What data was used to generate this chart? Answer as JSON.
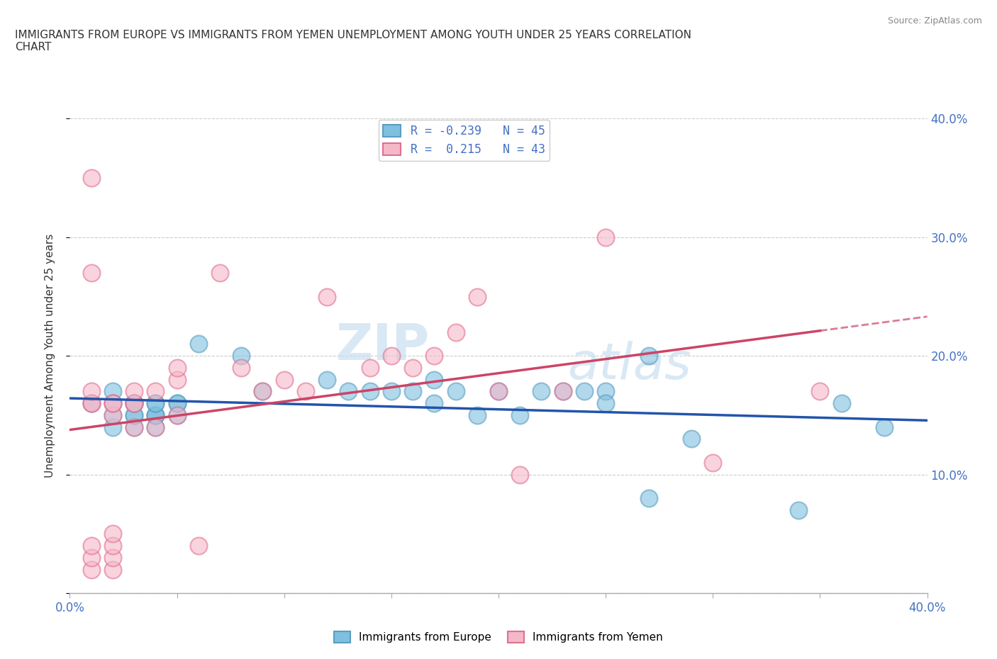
{
  "title": "IMMIGRANTS FROM EUROPE VS IMMIGRANTS FROM YEMEN UNEMPLOYMENT AMONG YOUTH UNDER 25 YEARS CORRELATION\nCHART",
  "source": "Source: ZipAtlas.com",
  "ylabel": "Unemployment Among Youth under 25 years",
  "xlim": [
    0.0,
    0.4
  ],
  "ylim": [
    0.0,
    0.4
  ],
  "europe_color": "#7fbfdf",
  "europe_edge": "#5a9ec0",
  "yemen_color": "#f5b8c8",
  "yemen_edge": "#e07090",
  "europe_line_color": "#2255aa",
  "yemen_line_color": "#cc4466",
  "europe_R": -0.239,
  "europe_N": 45,
  "yemen_R": 0.215,
  "yemen_N": 43,
  "europe_scatter_x": [
    0.01,
    0.02,
    0.02,
    0.02,
    0.02,
    0.03,
    0.03,
    0.03,
    0.03,
    0.03,
    0.03,
    0.04,
    0.04,
    0.04,
    0.04,
    0.04,
    0.04,
    0.05,
    0.05,
    0.05,
    0.06,
    0.08,
    0.09,
    0.12,
    0.13,
    0.14,
    0.15,
    0.16,
    0.17,
    0.17,
    0.18,
    0.19,
    0.2,
    0.21,
    0.22,
    0.23,
    0.24,
    0.25,
    0.25,
    0.27,
    0.27,
    0.29,
    0.34,
    0.36,
    0.38
  ],
  "europe_scatter_y": [
    0.16,
    0.14,
    0.15,
    0.16,
    0.17,
    0.14,
    0.15,
    0.15,
    0.16,
    0.16,
    0.16,
    0.14,
    0.15,
    0.15,
    0.15,
    0.16,
    0.16,
    0.15,
    0.16,
    0.16,
    0.21,
    0.2,
    0.17,
    0.18,
    0.17,
    0.17,
    0.17,
    0.17,
    0.16,
    0.18,
    0.17,
    0.15,
    0.17,
    0.15,
    0.17,
    0.17,
    0.17,
    0.17,
    0.16,
    0.08,
    0.2,
    0.13,
    0.07,
    0.16,
    0.14
  ],
  "yemen_scatter_x": [
    0.01,
    0.01,
    0.01,
    0.01,
    0.01,
    0.01,
    0.01,
    0.01,
    0.02,
    0.02,
    0.02,
    0.02,
    0.02,
    0.02,
    0.02,
    0.03,
    0.03,
    0.03,
    0.03,
    0.04,
    0.04,
    0.05,
    0.05,
    0.05,
    0.06,
    0.07,
    0.08,
    0.09,
    0.1,
    0.11,
    0.12,
    0.14,
    0.15,
    0.16,
    0.17,
    0.18,
    0.19,
    0.2,
    0.21,
    0.23,
    0.25,
    0.3,
    0.35
  ],
  "yemen_scatter_y": [
    0.16,
    0.16,
    0.17,
    0.35,
    0.27,
    0.02,
    0.03,
    0.04,
    0.02,
    0.03,
    0.04,
    0.05,
    0.15,
    0.16,
    0.16,
    0.14,
    0.16,
    0.16,
    0.17,
    0.14,
    0.17,
    0.15,
    0.18,
    0.19,
    0.04,
    0.27,
    0.19,
    0.17,
    0.18,
    0.17,
    0.25,
    0.19,
    0.2,
    0.19,
    0.2,
    0.22,
    0.25,
    0.17,
    0.1,
    0.17,
    0.3,
    0.11,
    0.17
  ],
  "watermark_zip": "ZIP",
  "watermark_atlas": "atlas",
  "background_color": "#ffffff",
  "grid_color": "#cccccc"
}
